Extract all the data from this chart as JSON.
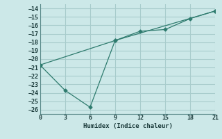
{
  "xlabel": "Humidex (Indice chaleur)",
  "ylabel": "",
  "bg_color": "#cce8e8",
  "grid_color": "#a8cccc",
  "line_color": "#2e7b6e",
  "line1_x": [
    0,
    9,
    12,
    15,
    18,
    21
  ],
  "line1_y": [
    -20.7,
    -17.8,
    -16.7,
    -16.5,
    -15.2,
    -14.3
  ],
  "line2_x": [
    0,
    3,
    6,
    9,
    21
  ],
  "line2_y": [
    -20.7,
    -23.7,
    -25.7,
    -17.8,
    -14.3
  ],
  "xlim": [
    0,
    21
  ],
  "ylim": [
    -26.5,
    -13.5
  ],
  "xticks": [
    0,
    3,
    6,
    9,
    12,
    15,
    18,
    21
  ],
  "yticks": [
    -14,
    -15,
    -16,
    -17,
    -18,
    -19,
    -20,
    -21,
    -22,
    -23,
    -24,
    -25,
    -26
  ]
}
